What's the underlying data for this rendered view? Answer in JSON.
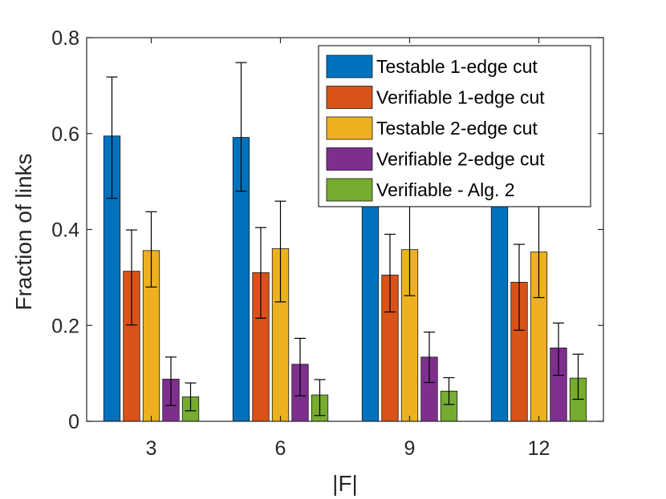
{
  "chart_data": {
    "type": "bar",
    "title": "",
    "xlabel": "|F|",
    "ylabel": "Fraction of links",
    "ylim": [
      0,
      0.8
    ],
    "yticks": [
      0,
      0.2,
      0.4,
      0.6,
      0.8
    ],
    "ytick_labels": [
      "0",
      "0.2",
      "0.4",
      "0.6",
      "0.8"
    ],
    "categories": [
      "3",
      "6",
      "9",
      "12"
    ],
    "grid": false,
    "legend_position": "top-right",
    "series": [
      {
        "name": "Testable 1-edge cut",
        "color": "#0072BD",
        "values": [
          0.595,
          0.592,
          0.593,
          0.594
        ],
        "error_low": [
          0.465,
          0.48,
          0.47,
          0.47
        ],
        "error_high": [
          0.718,
          0.748,
          0.72,
          0.72
        ]
      },
      {
        "name": "Verifiable 1-edge cut",
        "color": "#D95319",
        "values": [
          0.313,
          0.31,
          0.305,
          0.29
        ],
        "error_low": [
          0.201,
          0.215,
          0.228,
          0.19
        ],
        "error_high": [
          0.399,
          0.404,
          0.39,
          0.369
        ]
      },
      {
        "name": "Testable 2-edge cut",
        "color": "#EDB120",
        "values": [
          0.356,
          0.36,
          0.358,
          0.353
        ],
        "error_low": [
          0.28,
          0.249,
          0.262,
          0.258
        ],
        "error_high": [
          0.437,
          0.459,
          0.455,
          0.45
        ]
      },
      {
        "name": "Verifiable 2-edge cut",
        "color": "#7E2F8E",
        "values": [
          0.088,
          0.119,
          0.134,
          0.153
        ],
        "error_low": [
          0.033,
          0.053,
          0.081,
          0.096
        ],
        "error_high": [
          0.134,
          0.173,
          0.186,
          0.205
        ]
      },
      {
        "name": "Verifiable - Alg. 2",
        "color": "#77AC30",
        "values": [
          0.051,
          0.055,
          0.063,
          0.09
        ],
        "error_low": [
          0.022,
          0.012,
          0.035,
          0.046
        ],
        "error_high": [
          0.08,
          0.087,
          0.091,
          0.14
        ]
      }
    ]
  }
}
